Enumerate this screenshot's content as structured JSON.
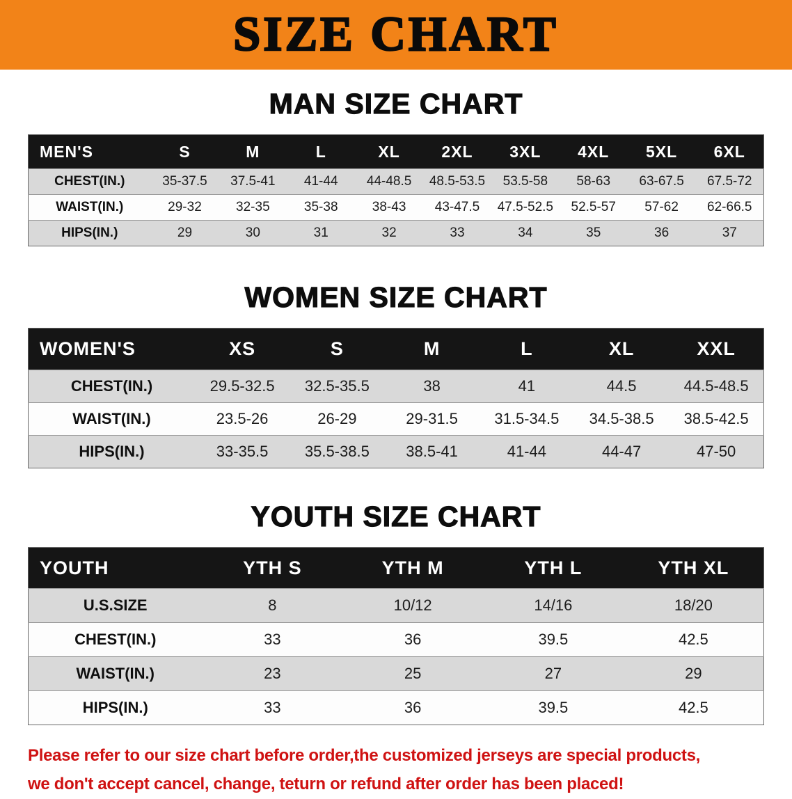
{
  "banner": {
    "title": "SIZE CHART"
  },
  "colors": {
    "banner_bg": "#f28318",
    "table_header_bg": "#151515",
    "row_stripe": "#d9d9d9",
    "footer_text": "#cf1212"
  },
  "sections": [
    {
      "heading": "MAN SIZE CHART",
      "table": {
        "header": [
          "MEN'S",
          "S",
          "M",
          "L",
          "XL",
          "2XL",
          "3XL",
          "4XL",
          "5XL",
          "6XL"
        ],
        "rows": [
          [
            "CHEST(IN.)",
            "35-37.5",
            "37.5-41",
            "41-44",
            "44-48.5",
            "48.5-53.5",
            "53.5-58",
            "58-63",
            "63-67.5",
            "67.5-72"
          ],
          [
            "WAIST(IN.)",
            "29-32",
            "32-35",
            "35-38",
            "38-43",
            "43-47.5",
            "47.5-52.5",
            "52.5-57",
            "57-62",
            "62-66.5"
          ],
          [
            "HIPS(IN.)",
            "29",
            "30",
            "31",
            "32",
            "33",
            "34",
            "35",
            "36",
            "37"
          ]
        ]
      }
    },
    {
      "heading": "WOMEN SIZE CHART",
      "table": {
        "header": [
          "WOMEN'S",
          "XS",
          "S",
          "M",
          "L",
          "XL",
          "XXL"
        ],
        "rows": [
          [
            "CHEST(IN.)",
            "29.5-32.5",
            "32.5-35.5",
            "38",
            "41",
            "44.5",
            "44.5-48.5"
          ],
          [
            "WAIST(IN.)",
            "23.5-26",
            "26-29",
            "29-31.5",
            "31.5-34.5",
            "34.5-38.5",
            "38.5-42.5"
          ],
          [
            "HIPS(IN.)",
            "33-35.5",
            "35.5-38.5",
            "38.5-41",
            "41-44",
            "44-47",
            "47-50"
          ]
        ]
      }
    },
    {
      "heading": "YOUTH SIZE CHART",
      "table": {
        "header": [
          "YOUTH",
          "YTH S",
          "YTH M",
          "YTH L",
          "YTH XL"
        ],
        "rows": [
          [
            "U.S.SIZE",
            "8",
            "10/12",
            "14/16",
            "18/20"
          ],
          [
            "CHEST(IN.)",
            "33",
            "36",
            "39.5",
            "42.5"
          ],
          [
            "WAIST(IN.)",
            "23",
            "25",
            "27",
            "29"
          ],
          [
            "HIPS(IN.)",
            "33",
            "36",
            "39.5",
            "42.5"
          ]
        ]
      }
    }
  ],
  "footer": {
    "line1": "Please refer to our size chart before order,the customized jerseys are special products,",
    "line2": "we don't accept cancel, change, teturn or refund after order has been placed!"
  }
}
